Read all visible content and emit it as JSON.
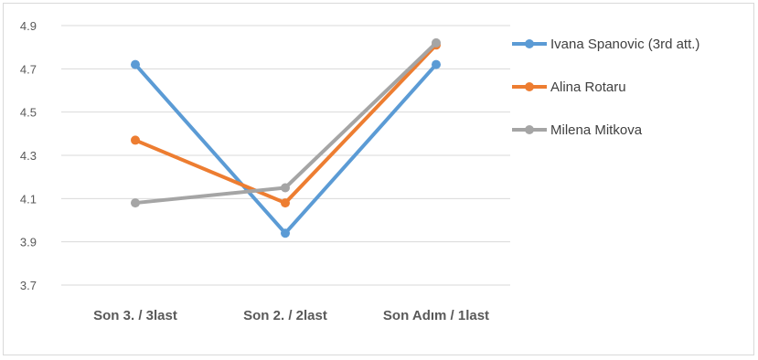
{
  "chart_data": {
    "type": "line",
    "categories": [
      "Son 3. / 3last",
      "Son 2. / 2last",
      "Son Adım / 1last"
    ],
    "series": [
      {
        "name": "Ivana Spanovic (3rd att.)",
        "values": [
          4.72,
          3.94,
          4.72
        ],
        "color": "#5B9BD5"
      },
      {
        "name": "Alina Rotaru",
        "values": [
          4.37,
          4.08,
          4.81
        ],
        "color": "#ED7D31"
      },
      {
        "name": "Milena Mitkova",
        "values": [
          4.08,
          4.15,
          4.82
        ],
        "color": "#A5A5A5"
      }
    ],
    "yticks": [
      "3.7",
      "3.9",
      "4.1",
      "4.3",
      "4.5",
      "4.7",
      "4.9"
    ],
    "ylim": [
      3.7,
      4.9
    ],
    "grid": true,
    "legend": "right"
  }
}
